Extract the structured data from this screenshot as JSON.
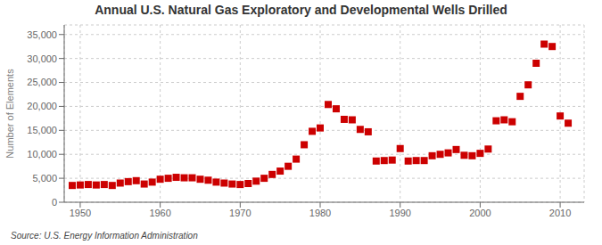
{
  "chart_data": {
    "type": "scatter",
    "title": "Annual U.S. Natural Gas Exploratory and Developmental Wells Drilled",
    "ylabel": "Number of Elements",
    "source": "Source: U.S. Energy Information Administration",
    "color": "#cc0000",
    "marker": "square",
    "grid": true,
    "xlim": [
      1948,
      2013
    ],
    "ylim": [
      0,
      37000
    ],
    "xticks": [
      1950,
      1960,
      1970,
      1980,
      1990,
      2000,
      2010
    ],
    "yticks": [
      0,
      {
        "value": 5000,
        "label": "5,000"
      },
      {
        "value": 10000,
        "label": "10,000"
      },
      {
        "value": 15000,
        "label": "15,000"
      },
      {
        "value": 20000,
        "label": "20,000"
      },
      {
        "value": 25000,
        "label": "25,000"
      },
      {
        "value": 30000,
        "label": "30,000"
      },
      {
        "value": 35000,
        "label": "35,000"
      }
    ],
    "x": [
      1949,
      1950,
      1951,
      1952,
      1953,
      1954,
      1955,
      1956,
      1957,
      1958,
      1959,
      1960,
      1961,
      1962,
      1963,
      1964,
      1965,
      1966,
      1967,
      1968,
      1969,
      1970,
      1971,
      1972,
      1973,
      1974,
      1975,
      1976,
      1977,
      1978,
      1979,
      1980,
      1981,
      1982,
      1983,
      1984,
      1985,
      1986,
      1987,
      1988,
      1989,
      1990,
      1991,
      1992,
      1993,
      1994,
      1995,
      1996,
      1997,
      1998,
      1999,
      2000,
      2001,
      2002,
      2003,
      2004,
      2005,
      2006,
      2007,
      2008,
      2009,
      2010,
      2011
    ],
    "values": [
      3500,
      3600,
      3700,
      3600,
      3700,
      3500,
      4000,
      4300,
      4500,
      3800,
      4200,
      4800,
      5000,
      5200,
      5100,
      5100,
      4800,
      4600,
      4200,
      4000,
      3800,
      3700,
      3900,
      4400,
      5000,
      5800,
      6500,
      7500,
      9000,
      12000,
      14800,
      15500,
      20400,
      19500,
      17300,
      17200,
      15200,
      14700,
      8600,
      8700,
      8800,
      11200,
      8600,
      8700,
      8700,
      9700,
      10000,
      10300,
      11000,
      9800,
      9700,
      10200,
      11100,
      17000,
      17200,
      16800,
      22100,
      24500,
      29000,
      33000,
      32500,
      18000,
      16500
    ]
  }
}
